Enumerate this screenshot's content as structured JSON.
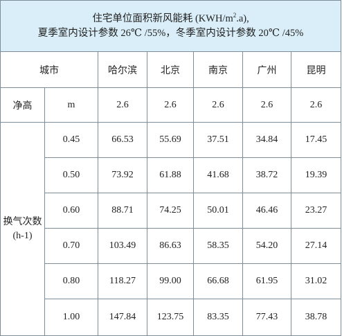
{
  "title": {
    "line1_pre": "住宅单位面积新风能耗 (KWH/m",
    "line1_sup": "2",
    "line1_post": ".a),",
    "line2": "夏季室内设计参数 26℃ /55%，冬季室内设计参数 20℃ /45%"
  },
  "header": {
    "city_label": "城市",
    "cities": [
      "哈尔滨",
      "北京",
      "南京",
      "广州",
      "昆明"
    ]
  },
  "net_height": {
    "label": "净高",
    "unit": "m",
    "values": [
      "2.6",
      "2.6",
      "2.6",
      "2.6",
      "2.6"
    ]
  },
  "air_change": {
    "label_line1": "换气次数",
    "label_line2": "(h-1)",
    "rows": [
      {
        "rate": "0.45",
        "values": [
          "66.53",
          "55.69",
          "37.51",
          "34.84",
          "17.45"
        ]
      },
      {
        "rate": "0.50",
        "values": [
          "73.92",
          "61.88",
          "41.68",
          "38.72",
          "19.39"
        ]
      },
      {
        "rate": "0.60",
        "values": [
          "88.71",
          "74.25",
          "50.01",
          "46.46",
          "23.27"
        ]
      },
      {
        "rate": "0.70",
        "values": [
          "103.49",
          "86.63",
          "58.35",
          "54.20",
          "27.14"
        ]
      },
      {
        "rate": "0.80",
        "values": [
          "118.27",
          "99.00",
          "66.68",
          "61.95",
          "31.02"
        ]
      },
      {
        "rate": "1.00",
        "values": [
          "147.84",
          "123.75",
          "83.35",
          "77.43",
          "38.78"
        ]
      }
    ]
  },
  "colors": {
    "title_bg": "#d9eef8",
    "border": "#7d8c99"
  }
}
